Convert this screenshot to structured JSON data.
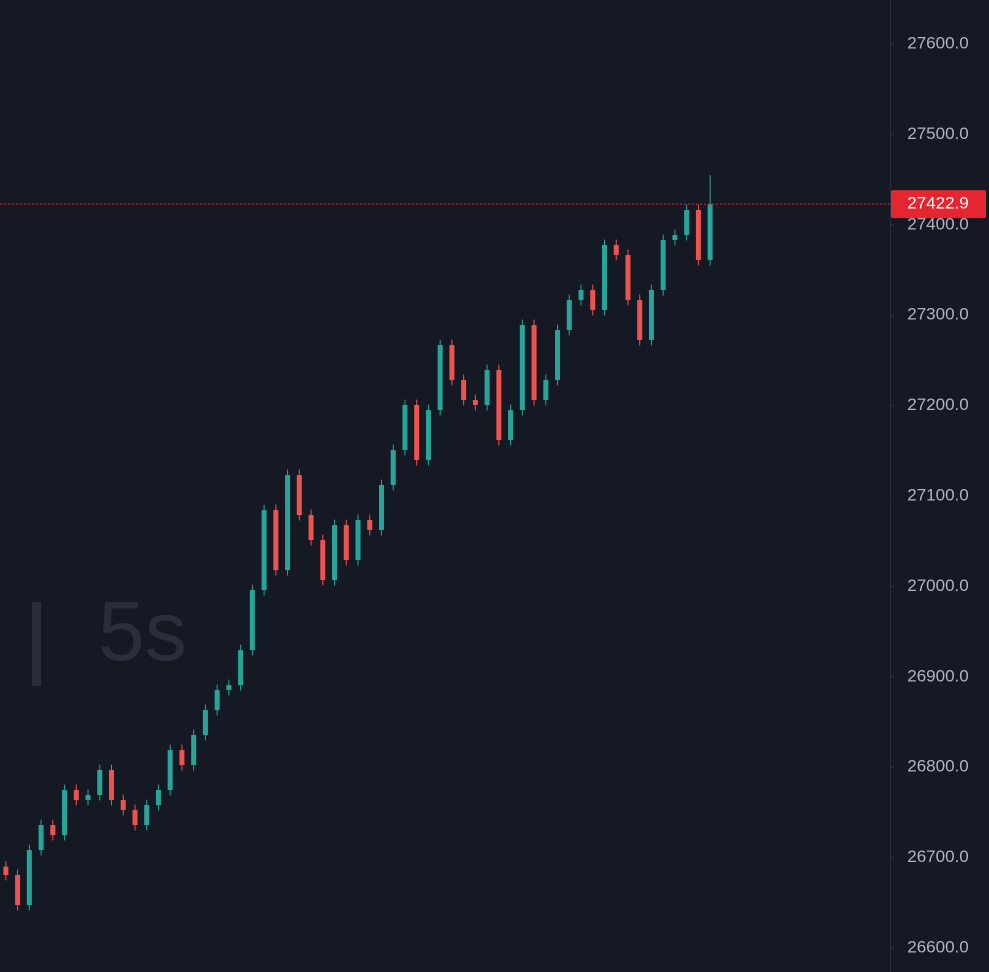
{
  "chart_data": {
    "type": "candlestick",
    "watermark": "5s",
    "up_color": "#26a69a",
    "down_color": "#ef5350",
    "open": [
      26690.0,
      26680.8,
      26647.6,
      26708.4,
      26736.1,
      26725.0,
      26774.8,
      26763.7,
      26769.3,
      26796.9,
      26763.7,
      26752.7,
      26736.1,
      26758.2,
      26774.8,
      26819.0,
      26802.4,
      26835.6,
      26863.3,
      26885.4,
      26890.9,
      26929.6,
      26996.0,
      27084.5,
      27018.1,
      27123.2,
      27079.0,
      27051.3,
      27007.1,
      27067.9,
      27029.2,
      27073.5,
      27062.4,
      27112.2,
      27150.9,
      27200.7,
      27139.8,
      27195.1,
      27267.0,
      27228.3,
      27206.2,
      27200.7,
      27239.4,
      27161.9,
      27195.1,
      27289.2,
      27206.2,
      27228.3,
      27283.6,
      27316.8,
      27327.9,
      27305.8,
      27377.7,
      27366.6,
      27316.8,
      27272.6,
      27327.9,
      27383.2,
      27388.7,
      27416.4,
      27361.1
    ],
    "high": [
      26696.0,
      26686.8,
      26714.4,
      26742.1,
      26742.1,
      26780.8,
      26780.8,
      26775.3,
      26802.9,
      26802.9,
      26769.7,
      26758.7,
      26764.2,
      26780.8,
      26825.0,
      26825.0,
      26841.6,
      26869.3,
      26891.4,
      26896.9,
      26935.6,
      27002.0,
      27090.5,
      27090.5,
      27129.2,
      27129.2,
      27085.0,
      27057.3,
      27073.9,
      27073.9,
      27079.5,
      27079.5,
      27118.2,
      27156.9,
      27206.7,
      27206.7,
      27201.1,
      27273.0,
      27273.0,
      27234.3,
      27212.2,
      27245.4,
      27245.4,
      27201.1,
      27295.2,
      27295.2,
      27234.3,
      27289.6,
      27322.8,
      27333.9,
      27333.9,
      27383.7,
      27383.7,
      27372.6,
      27322.8,
      27333.9,
      27389.2,
      27394.7,
      27422.4,
      27422.4,
      27455.0
    ],
    "low": [
      26674.8,
      26641.6,
      26641.6,
      26702.4,
      26719.0,
      26719.0,
      26757.7,
      26757.7,
      26763.3,
      26757.7,
      26746.7,
      26730.1,
      26730.1,
      26752.2,
      26768.8,
      26796.4,
      26796.4,
      26829.6,
      26857.3,
      26879.4,
      26884.9,
      26923.6,
      26990.0,
      27012.1,
      27012.1,
      27073.0,
      27045.3,
      27001.1,
      27001.1,
      27023.2,
      27023.2,
      27056.4,
      27056.4,
      27106.2,
      27144.9,
      27133.8,
      27133.8,
      27189.1,
      27222.3,
      27200.2,
      27194.7,
      27194.7,
      27155.9,
      27155.9,
      27189.1,
      27200.2,
      27200.2,
      27222.3,
      27277.6,
      27310.8,
      27299.8,
      27299.8,
      27360.6,
      27310.8,
      27266.6,
      27266.6,
      27321.9,
      27377.2,
      27382.7,
      27355.1,
      27355.1
    ],
    "close": [
      26680.8,
      26647.6,
      26708.4,
      26736.1,
      26725.0,
      26774.8,
      26763.7,
      26769.3,
      26796.9,
      26763.7,
      26752.7,
      26736.1,
      26758.2,
      26774.8,
      26819.0,
      26802.4,
      26835.6,
      26863.3,
      26885.4,
      26890.9,
      26929.6,
      26996.0,
      27084.5,
      27018.1,
      27123.2,
      27079.0,
      27051.3,
      27007.1,
      27067.9,
      27029.2,
      27073.5,
      27062.4,
      27112.2,
      27150.9,
      27200.7,
      27139.8,
      27195.1,
      27267.0,
      27228.3,
      27206.2,
      27200.7,
      27239.4,
      27161.9,
      27195.1,
      27289.2,
      27206.2,
      27228.3,
      27283.6,
      27316.8,
      27327.9,
      27305.8,
      27377.7,
      27366.6,
      27316.8,
      27272.6,
      27327.9,
      27383.2,
      27388.7,
      27416.4,
      27361.1,
      27422.9
    ],
    "last_price": 27422.9,
    "last_price_color": "#e3262f",
    "ylim": [
      26573.5,
      27648.7
    ],
    "yticks": [
      {
        "value": 26600,
        "label": "26600.0"
      },
      {
        "value": 26700,
        "label": "26700.0"
      },
      {
        "value": 26800,
        "label": "26800.0"
      },
      {
        "value": 26900,
        "label": "26900.0"
      },
      {
        "value": 27000,
        "label": "27000.0"
      },
      {
        "value": 27100,
        "label": "27100.0"
      },
      {
        "value": 27200,
        "label": "27200.0"
      },
      {
        "value": 27300,
        "label": "27300.0"
      },
      {
        "value": 27400,
        "label": "27400.0"
      },
      {
        "value": 27500,
        "label": "27500.0"
      },
      {
        "value": 27600,
        "label": "27600.0"
      }
    ]
  }
}
